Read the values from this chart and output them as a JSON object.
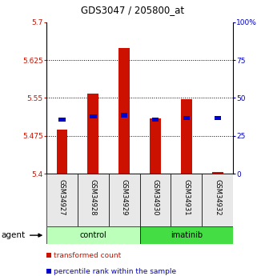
{
  "title": "GDS3047 / 205800_at",
  "samples": [
    "GSM34927",
    "GSM34928",
    "GSM34929",
    "GSM34930",
    "GSM34931",
    "GSM34932"
  ],
  "bar_base": 5.4,
  "bar_tops": [
    5.488,
    5.558,
    5.648,
    5.51,
    5.548,
    5.403
  ],
  "percentile_vals": [
    5.508,
    5.513,
    5.516,
    5.508,
    5.511,
    5.51
  ],
  "ylim": [
    5.4,
    5.7
  ],
  "yticks_left": [
    5.4,
    5.475,
    5.55,
    5.625,
    5.7
  ],
  "yticks_left_labels": [
    "5.4",
    "5.475",
    "5.55",
    "5.625",
    "5.7"
  ],
  "yticks_right_vals": [
    0,
    25,
    50,
    75,
    100
  ],
  "yticks_right_labels": [
    "0",
    "25",
    "50",
    "75",
    "100%"
  ],
  "bar_color": "#cc1100",
  "percentile_color": "#0000cc",
  "control_color": "#bbffbb",
  "imatinib_color": "#44dd44",
  "title_color": "black",
  "left_axis_color": "#cc1100",
  "right_axis_color": "#0000bb",
  "bar_width": 0.35,
  "legend_items": [
    "transformed count",
    "percentile rank within the sample"
  ]
}
